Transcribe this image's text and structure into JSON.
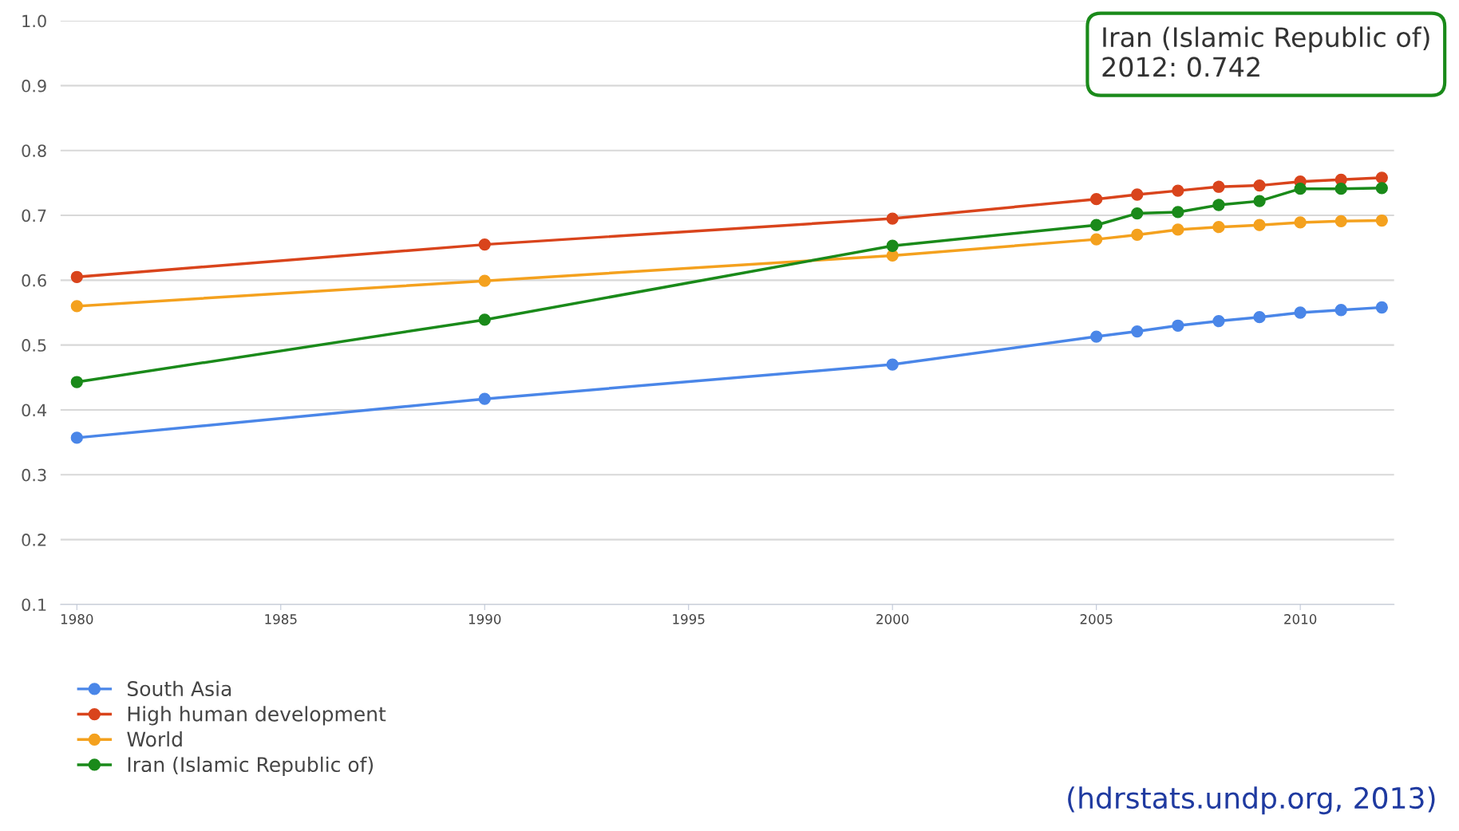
{
  "chart_data": {
    "type": "line",
    "x": [
      1980,
      1990,
      2000,
      2005,
      2006,
      2007,
      2008,
      2009,
      2010,
      2011,
      2012
    ],
    "series": [
      {
        "name": "South Asia",
        "color": "#4a86e8",
        "values": [
          0.357,
          0.417,
          0.47,
          0.513,
          0.521,
          0.53,
          0.537,
          0.543,
          0.55,
          0.554,
          0.558
        ]
      },
      {
        "name": "High human development",
        "color": "#d9441c",
        "values": [
          0.605,
          0.655,
          0.695,
          0.725,
          0.732,
          0.738,
          0.744,
          0.746,
          0.752,
          0.755,
          0.758
        ]
      },
      {
        "name": "World",
        "color": "#f4a11e",
        "values": [
          0.56,
          0.599,
          0.638,
          0.663,
          0.67,
          0.678,
          0.682,
          0.685,
          0.689,
          0.691,
          0.692
        ]
      },
      {
        "name": "Iran (Islamic Republic of)",
        "color": "#1a8a1a",
        "values": [
          0.443,
          0.539,
          0.653,
          0.685,
          0.703,
          0.705,
          0.716,
          0.722,
          0.741,
          0.741,
          0.742
        ]
      }
    ],
    "xlim": [
      1979.6,
      2012.3
    ],
    "xticks": [
      1980,
      1985,
      1990,
      1995,
      2000,
      2005,
      2010
    ],
    "ylim": [
      0.1,
      1.0
    ],
    "yticks": [
      {
        "value": 0.1,
        "label": "0.1"
      },
      {
        "value": 0.2,
        "label": "0.2"
      },
      {
        "value": 0.3,
        "label": "0.3"
      },
      {
        "value": 0.4,
        "label": "0.4"
      },
      {
        "value": 0.5,
        "label": "0.5"
      },
      {
        "value": 0.6,
        "label": "0.6"
      },
      {
        "value": 0.7,
        "label": "0.7"
      },
      {
        "value": 0.8,
        "label": "0.8"
      },
      {
        "value": 0.9,
        "label": "0.9"
      },
      {
        "value": 1.0,
        "label": "1.0"
      }
    ],
    "grid": "y",
    "legend": "bottom left",
    "marker": "circle",
    "line_style": "solid",
    "annotations": [
      "Iran (Islamic Republic of)\n2012: 0.742",
      "(hdrstats.undp.org, 2013)"
    ]
  }
}
